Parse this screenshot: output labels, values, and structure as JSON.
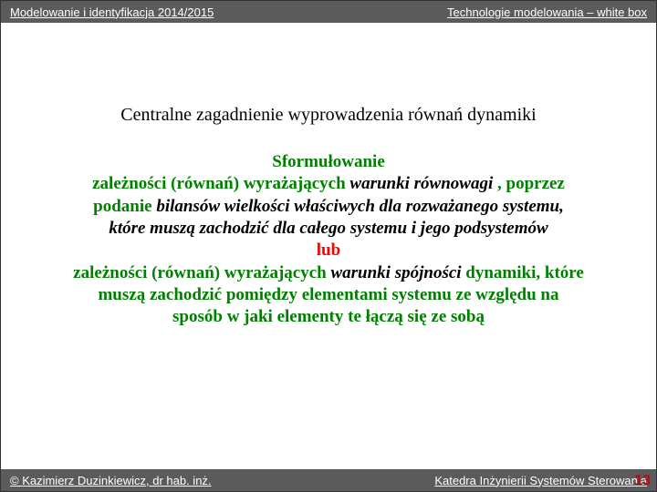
{
  "header": {
    "left": "Modelowanie i identyfikacja 2014/2015",
    "right": "Technologie modelowania – white box"
  },
  "content": {
    "intro": "Centralne zagadnienie wyprowadzenia równań dynamiki",
    "l1": "Sformułowanie",
    "l2a": "zależności (równań) wyrażających ",
    "l2b": "warunki równowagi",
    "l2c": " , poprzez",
    "l3a": "podanie ",
    "l3b": "bilansów wielkości właściwych dla rozważanego systemu,",
    "l4": "które muszą zachodzić dla całego systemu i jego podsystemów",
    "l5": "lub",
    "l6a": "zależności (równań) wyrażających ",
    "l6b": "warunki spójności ",
    "l6c": "dynamiki, które",
    "l7": "muszą zachodzić pomiędzy elementami systemu ze względu na",
    "l8": "sposób w jaki elementy te łączą się ze sobą"
  },
  "footer": {
    "left": "© Kazimierz Duzinkiewicz, dr hab. inż.",
    "right": "Katedra Inżynierii Systemów Sterowania"
  },
  "page": "13",
  "colors": {
    "header_bg": "#5b5a5d",
    "green": "#008000",
    "red": "#ff0000",
    "pagenum": "#c7040e"
  }
}
